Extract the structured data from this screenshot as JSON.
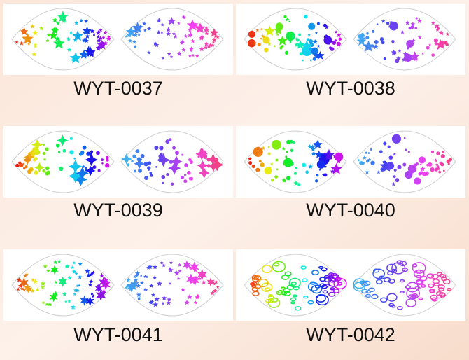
{
  "items": [
    {
      "label": "WYT-0037"
    },
    {
      "label": "WYT-0038"
    },
    {
      "label": "WYT-0039"
    },
    {
      "label": "WYT-0040"
    },
    {
      "label": "WYT-0041"
    },
    {
      "label": "WYT-0042"
    }
  ]
}
